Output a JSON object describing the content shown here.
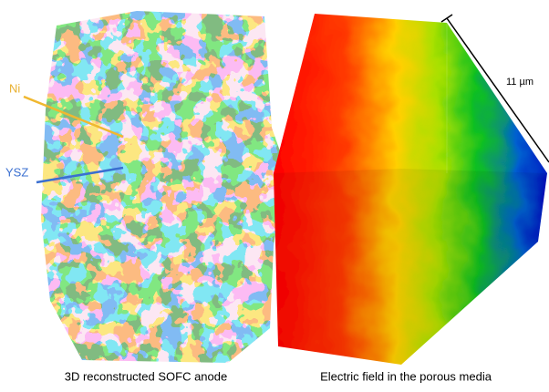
{
  "labels": {
    "ni": "Ni",
    "ysz": "YSZ",
    "scale": "11 µm"
  },
  "captions": [
    "3D reconstructed SOFC anode",
    "Electric field in the porous media"
  ]
}
